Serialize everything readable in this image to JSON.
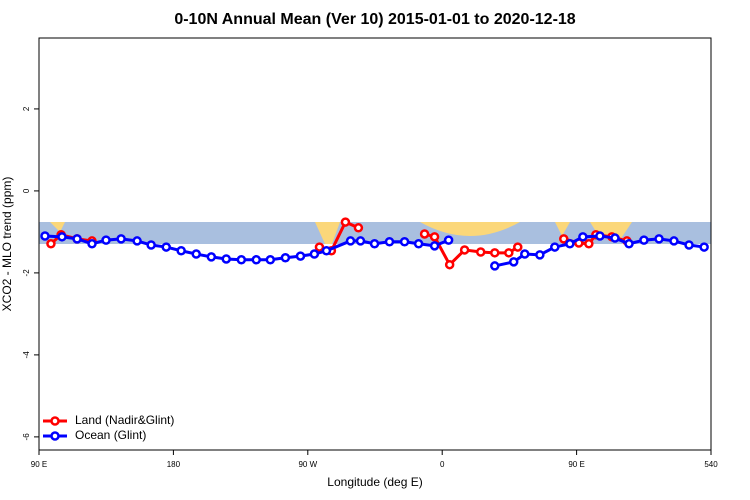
{
  "chart_data": {
    "type": "line",
    "title": "0-10N Annual Mean (Ver 10)   2015-01-01 to 2020-12-18",
    "x_label": "Longitude (deg E)",
    "y_label": "XCO2 - MLO trend (ppm)",
    "xlim": [
      90,
      540
    ],
    "xticks": [
      {
        "value": 90,
        "label": "90 E"
      },
      180,
      {
        "value": 270,
        "label": "90 W"
      },
      {
        "value": 360,
        "label": "0"
      },
      {
        "value": 450,
        "label": "90 E"
      },
      540
    ],
    "ylim": [
      -6.32,
      3.73
    ],
    "yticks": [
      2,
      0,
      -2,
      -4,
      -6
    ],
    "legend": "bottom-left",
    "series": [
      {
        "name": "Land (Nadir&Glint)",
        "color": "#ff0000",
        "x": [
          98.0,
          104.8,
          115.5,
          125.5,
          200,
          277.8,
          285.8,
          295.2,
          303.9,
          330,
          348.2,
          354.9,
          365.0,
          375.0,
          385.8,
          395.2,
          404.6,
          410.6,
          430,
          441.4,
          451.5,
          458.2,
          462.9,
          473.6,
          483.7
        ],
        "values": [
          -1.29,
          -1.07,
          -1.17,
          -1.22,
          null,
          -1.37,
          -1.46,
          -0.76,
          -0.9,
          null,
          -1.05,
          -1.12,
          -1.8,
          -1.44,
          -1.49,
          -1.51,
          -1.51,
          -1.37,
          null,
          -1.17,
          -1.27,
          -1.29,
          -1.07,
          -1.12,
          -1.22
        ]
      },
      {
        "name": "Ocean (Glint)",
        "color": "#0000ff",
        "x": [
          94.0,
          105.4,
          115.5,
          125.5,
          134.9,
          145.0,
          155.7,
          165.1,
          175.2,
          185.2,
          195.3,
          205.4,
          215.4,
          225.5,
          235.5,
          244.9,
          255.0,
          265.1,
          274.4,
          282.5,
          298.6,
          305.3,
          314.7,
          324.7,
          334.8,
          344.2,
          354.9,
          364.3,
          380,
          395.2,
          407.9,
          415.3,
          425.4,
          435.4,
          445.5,
          454.2,
          465.6,
          475.7,
          485.1,
          495.1,
          505.2,
          515.2,
          525.3,
          535.4
        ],
        "values": [
          -1.1,
          -1.12,
          -1.17,
          -1.29,
          -1.2,
          -1.17,
          -1.22,
          -1.32,
          -1.37,
          -1.46,
          -1.54,
          -1.61,
          -1.66,
          -1.68,
          -1.68,
          -1.68,
          -1.63,
          -1.59,
          -1.54,
          -1.46,
          -1.22,
          -1.22,
          -1.29,
          -1.24,
          -1.24,
          -1.29,
          -1.34,
          -1.2,
          null,
          -1.83,
          -1.73,
          -1.54,
          -1.56,
          -1.37,
          -1.29,
          -1.12,
          -1.1,
          -1.15,
          -1.29,
          -1.2,
          -1.17,
          -1.22,
          -1.32,
          -1.37
        ]
      }
    ]
  }
}
